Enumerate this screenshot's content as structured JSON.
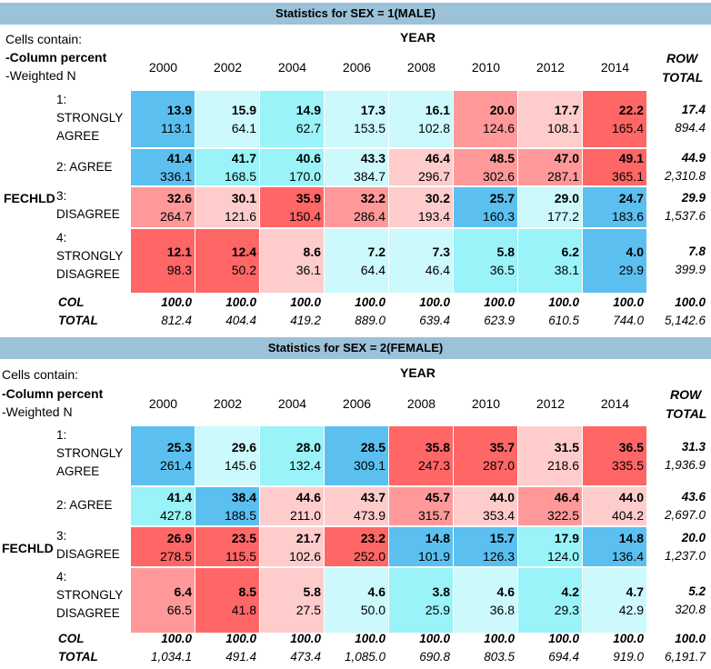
{
  "colors": {
    "header_bg": "#9bc2d9",
    "strong_blue": "#5bc0f0",
    "light_cyan": "#99f3f8",
    "pale_cyan": "#ccf9fb",
    "pale_pink": "#ffcccc",
    "mid_red": "#ff9999",
    "strong_red": "#ff6666"
  },
  "panels": [
    {
      "title": "Statistics for SEX = 1(MALE)",
      "cells_contain": "Cells contain:",
      "line1": "-Column percent",
      "line2": "-Weighted N",
      "year_label": "YEAR",
      "row_var": "FECHLD",
      "row_total_1": "ROW",
      "row_total_2": "TOTAL",
      "years": [
        "2000",
        "2002",
        "2004",
        "2006",
        "2008",
        "2010",
        "2012",
        "2014"
      ],
      "rows": [
        {
          "label": "1: STRONGLY AGREE",
          "pct": [
            "13.9",
            "15.9",
            "14.9",
            "17.3",
            "16.1",
            "20.0",
            "17.7",
            "22.2"
          ],
          "n": [
            "113.1",
            "64.1",
            "62.7",
            "153.5",
            "102.8",
            "124.6",
            "108.1",
            "165.4"
          ],
          "tot_pct": "17.4",
          "tot_n": "894.4"
        },
        {
          "label": "2: AGREE",
          "pct": [
            "41.4",
            "41.7",
            "40.6",
            "43.3",
            "46.4",
            "48.5",
            "47.0",
            "49.1"
          ],
          "n": [
            "336.1",
            "168.5",
            "170.0",
            "384.7",
            "296.7",
            "302.6",
            "287.1",
            "365.1"
          ],
          "tot_pct": "44.9",
          "tot_n": "2,310.8"
        },
        {
          "label": "3: DISAGREE",
          "pct": [
            "32.6",
            "30.1",
            "35.9",
            "32.2",
            "30.2",
            "25.7",
            "29.0",
            "24.7"
          ],
          "n": [
            "264.7",
            "121.6",
            "150.4",
            "286.4",
            "193.4",
            "160.3",
            "177.2",
            "183.6"
          ],
          "tot_pct": "29.9",
          "tot_n": "1,537.6"
        },
        {
          "label": "4: STRONGLY DISAGREE",
          "pct": [
            "12.1",
            "12.4",
            "8.6",
            "7.2",
            "7.3",
            "5.8",
            "6.2",
            "4.0"
          ],
          "n": [
            "98.3",
            "50.2",
            "36.1",
            "64.4",
            "46.4",
            "36.5",
            "38.1",
            "29.9"
          ],
          "tot_pct": "7.8",
          "tot_n": "399.9"
        }
      ],
      "col_label": "COL",
      "total_label": "TOTAL",
      "col_pct": [
        "100.0",
        "100.0",
        "100.0",
        "100.0",
        "100.0",
        "100.0",
        "100.0",
        "100.0",
        "100.0"
      ],
      "col_n": [
        "812.4",
        "404.4",
        "419.2",
        "889.0",
        "639.4",
        "623.9",
        "610.5",
        "744.0",
        "5,142.6"
      ],
      "cell_colors": [
        [
          "strong_blue",
          "pale_cyan",
          "light_cyan",
          "pale_cyan",
          "pale_cyan",
          "mid_red",
          "pale_pink",
          "strong_red"
        ],
        [
          "strong_blue",
          "light_cyan",
          "light_cyan",
          "pale_cyan",
          "pale_pink",
          "mid_red",
          "mid_red",
          "strong_red"
        ],
        [
          "mid_red",
          "pale_pink",
          "strong_red",
          "mid_red",
          "pale_pink",
          "strong_blue",
          "pale_cyan",
          "strong_blue"
        ],
        [
          "strong_red",
          "strong_red",
          "pale_pink",
          "pale_cyan",
          "pale_cyan",
          "light_cyan",
          "light_cyan",
          "strong_blue"
        ]
      ]
    },
    {
      "title": "Statistics for SEX = 2(FEMALE)",
      "cells_contain": "Cells contain:",
      "line1": "-Column percent",
      "line2": "-Weighted N",
      "year_label": "YEAR",
      "row_var": "FECHLD",
      "row_total_1": "ROW",
      "row_total_2": "TOTAL",
      "years": [
        "2000",
        "2002",
        "2004",
        "2006",
        "2008",
        "2010",
        "2012",
        "2014"
      ],
      "rows": [
        {
          "label": "1: STRONGLY AGREE",
          "pct": [
            "25.3",
            "29.6",
            "28.0",
            "28.5",
            "35.8",
            "35.7",
            "31.5",
            "36.5"
          ],
          "n": [
            "261.4",
            "145.6",
            "132.4",
            "309.1",
            "247.3",
            "287.0",
            "218.6",
            "335.5"
          ],
          "tot_pct": "31.3",
          "tot_n": "1,936.9"
        },
        {
          "label": "2: AGREE",
          "pct": [
            "41.4",
            "38.4",
            "44.6",
            "43.7",
            "45.7",
            "44.0",
            "46.4",
            "44.0"
          ],
          "n": [
            "427.8",
            "188.5",
            "211.0",
            "473.9",
            "315.7",
            "353.4",
            "322.5",
            "404.2"
          ],
          "tot_pct": "43.6",
          "tot_n": "2,697.0"
        },
        {
          "label": "3: DISAGREE",
          "pct": [
            "26.9",
            "23.5",
            "21.7",
            "23.2",
            "14.8",
            "15.7",
            "17.9",
            "14.8"
          ],
          "n": [
            "278.5",
            "115.5",
            "102.6",
            "252.0",
            "101.9",
            "126.3",
            "124.0",
            "136.4"
          ],
          "tot_pct": "20.0",
          "tot_n": "1,237.0"
        },
        {
          "label": "4: STRONGLY DISAGREE",
          "pct": [
            "6.4",
            "8.5",
            "5.8",
            "4.6",
            "3.8",
            "4.6",
            "4.2",
            "4.7"
          ],
          "n": [
            "66.5",
            "41.8",
            "27.5",
            "50.0",
            "25.9",
            "36.8",
            "29.3",
            "42.9"
          ],
          "tot_pct": "5.2",
          "tot_n": "320.8"
        }
      ],
      "col_label": "COL",
      "total_label": "TOTAL",
      "col_pct": [
        "100.0",
        "100.0",
        "100.0",
        "100.0",
        "100.0",
        "100.0",
        "100.0",
        "100.0",
        "100.0"
      ],
      "col_n": [
        "1,034.1",
        "491.4",
        "473.4",
        "1,085.0",
        "690.8",
        "803.5",
        "694.4",
        "919.0",
        "6,191.7"
      ],
      "cell_colors": [
        [
          "strong_blue",
          "pale_cyan",
          "light_cyan",
          "strong_blue",
          "strong_red",
          "strong_red",
          "pale_pink",
          "strong_red"
        ],
        [
          "light_cyan",
          "strong_blue",
          "pale_pink",
          "pale_pink",
          "mid_red",
          "pale_pink",
          "mid_red",
          "pale_pink"
        ],
        [
          "strong_red",
          "strong_red",
          "pale_pink",
          "strong_red",
          "strong_blue",
          "strong_blue",
          "light_cyan",
          "strong_blue"
        ],
        [
          "mid_red",
          "strong_red",
          "pale_pink",
          "pale_cyan",
          "light_cyan",
          "pale_cyan",
          "light_cyan",
          "pale_cyan"
        ]
      ]
    }
  ]
}
